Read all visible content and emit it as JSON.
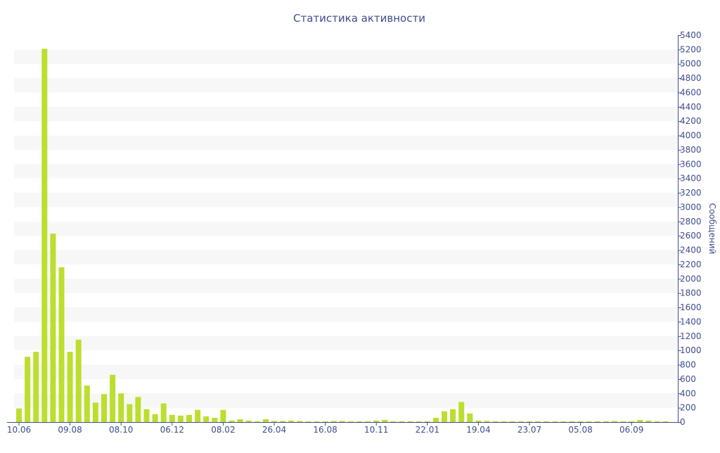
{
  "chart_data": {
    "type": "bar",
    "title": "Статистика активности",
    "xlabel": "",
    "ylabel": "Сообщений",
    "ylim": [
      0,
      5400
    ],
    "ytick_step": 200,
    "y_axis_side": "right",
    "grid": "alternating horizontal bands",
    "colors": {
      "bar": "#bcde2e",
      "band": "#f7f7f7",
      "text": "#3e4d8c",
      "axis": "#3e4d8c"
    },
    "x_tick_labels": [
      {
        "label": "10.06",
        "bar_index": 0
      },
      {
        "label": "09.08",
        "bar_index": 6
      },
      {
        "label": "08.10",
        "bar_index": 12
      },
      {
        "label": "06.12",
        "bar_index": 18
      },
      {
        "label": "08.02",
        "bar_index": 24
      },
      {
        "label": "26.04",
        "bar_index": 30
      },
      {
        "label": "16.08",
        "bar_index": 36
      },
      {
        "label": "10.11",
        "bar_index": 42
      },
      {
        "label": "22.01",
        "bar_index": 48
      },
      {
        "label": "19.04",
        "bar_index": 54
      },
      {
        "label": "23.07",
        "bar_index": 60
      },
      {
        "label": "05.08",
        "bar_index": 66
      },
      {
        "label": "06.09",
        "bar_index": 72
      }
    ],
    "values": [
      190,
      910,
      980,
      5210,
      2630,
      2160,
      980,
      1150,
      510,
      270,
      390,
      660,
      400,
      250,
      350,
      180,
      110,
      260,
      100,
      90,
      100,
      170,
      80,
      60,
      170,
      20,
      40,
      20,
      10,
      40,
      15,
      15,
      20,
      15,
      10,
      10,
      10,
      15,
      15,
      10,
      10,
      10,
      20,
      30,
      10,
      10,
      10,
      10,
      10,
      60,
      150,
      180,
      280,
      120,
      20,
      15,
      10,
      10,
      10,
      10,
      10,
      10,
      10,
      10,
      10,
      10,
      10,
      10,
      10,
      10,
      15,
      10,
      10,
      30,
      20,
      10,
      10
    ]
  }
}
